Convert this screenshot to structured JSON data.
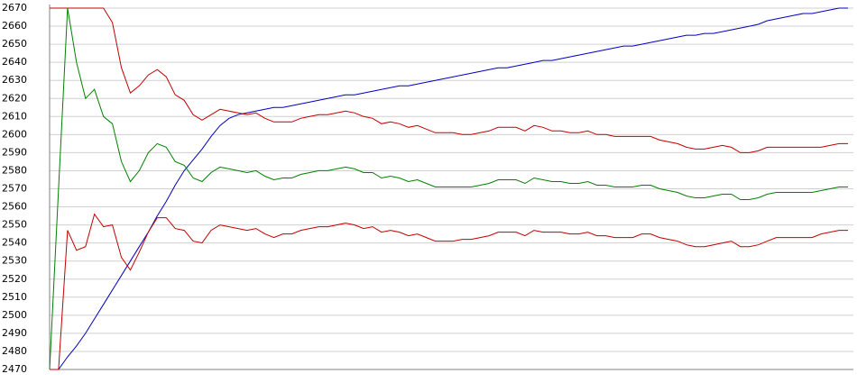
{
  "chart_data": {
    "type": "line",
    "categories": [
      null,
      null,
      null,
      null,
      null,
      null,
      null,
      null,
      null,
      null,
      null,
      null,
      null,
      null,
      null,
      null,
      null,
      null,
      null,
      null,
      null,
      null,
      null,
      null,
      null,
      null,
      null,
      null,
      null,
      null,
      null,
      null,
      null,
      null,
      null,
      null,
      null,
      null,
      null,
      null,
      null,
      null,
      null,
      null,
      null,
      null,
      null,
      null,
      null,
      null,
      null,
      null,
      null,
      null,
      null,
      null,
      null,
      null,
      null,
      null,
      null,
      null,
      null,
      null,
      null,
      null,
      null,
      null,
      null,
      null,
      null,
      null,
      null,
      null,
      null,
      null,
      null,
      null,
      null,
      null,
      null,
      null,
      null,
      null,
      null,
      null,
      null,
      null,
      null,
      null
    ],
    "series": [
      {
        "color": "#0000c0",
        "values": [
          2470,
          2470,
          2477,
          2483,
          2490,
          2498,
          2506,
          2514,
          2522,
          2530,
          2538,
          2546,
          2555,
          2563,
          2572,
          2580,
          2586,
          2592,
          2599,
          2605,
          2609,
          2611,
          2612,
          2613,
          2614,
          2615,
          2615,
          2616,
          2617,
          2618,
          2619,
          2620,
          2621,
          2622,
          2622,
          2623,
          2624,
          2625,
          2626,
          2627,
          2627,
          2628,
          2629,
          2630,
          2631,
          2632,
          2633,
          2634,
          2635,
          2636,
          2637,
          2637,
          2638,
          2639,
          2640,
          2641,
          2641,
          2642,
          2643,
          2644,
          2645,
          2646,
          2647,
          2648,
          2649,
          2649,
          2650,
          2651,
          2652,
          2653,
          2654,
          2655,
          2655,
          2656,
          2656,
          2657,
          2658,
          2659,
          2660,
          2661,
          2663,
          2664,
          2665,
          2666,
          2667,
          2667,
          2668,
          2669,
          2670,
          2670
        ]
      },
      {
        "color": "#008000",
        "values": [
          2470,
          2570,
          2670,
          2640,
          2620,
          2625,
          2610,
          2606,
          2585,
          2574,
          2580,
          2590,
          2595,
          2593,
          2585,
          2583,
          2576,
          2574,
          2579,
          2582,
          2581,
          2580,
          2579,
          2580,
          2577,
          2575,
          2576,
          2576,
          2578,
          2579,
          2580,
          2580,
          2581,
          2582,
          2581,
          2579,
          2579,
          2576,
          2577,
          2576,
          2574,
          2575,
          2573,
          2571,
          2571,
          2571,
          2571,
          2571,
          2572,
          2573,
          2575,
          2575,
          2575,
          2573,
          2576,
          2575,
          2574,
          2574,
          2573,
          2573,
          2574,
          2572,
          2572,
          2571,
          2571,
          2571,
          2572,
          2572,
          2570,
          2569,
          2568,
          2566,
          2565,
          2565,
          2566,
          2567,
          2567,
          2564,
          2564,
          2565,
          2567,
          2568,
          2568,
          2568,
          2568,
          2568,
          2569,
          2570,
          2571,
          2571
        ]
      },
      {
        "color": "#c00000",
        "values": [
          2670,
          2670,
          2670,
          2670,
          2670,
          2670,
          2670,
          2662,
          2637,
          2623,
          2627,
          2633,
          2636,
          2632,
          2622,
          2619,
          2611,
          2608,
          2611,
          2614,
          2613,
          2612,
          2611,
          2612,
          2609,
          2607,
          2607,
          2607,
          2609,
          2610,
          2611,
          2611,
          2612,
          2613,
          2612,
          2610,
          2609,
          2606,
          2607,
          2606,
          2604,
          2605,
          2603,
          2601,
          2601,
          2601,
          2600,
          2600,
          2601,
          2602,
          2604,
          2604,
          2604,
          2602,
          2605,
          2604,
          2602,
          2602,
          2601,
          2601,
          2602,
          2600,
          2600,
          2599,
          2599,
          2599,
          2599,
          2599,
          2597,
          2596,
          2595,
          2593,
          2592,
          2592,
          2593,
          2594,
          2593,
          2590,
          2590,
          2591,
          2593,
          2593,
          2593,
          2593,
          2593,
          2593,
          2593,
          2594,
          2595,
          2595
        ]
      },
      {
        "color": "#c00000",
        "values": [
          2470,
          2470,
          2547,
          2536,
          2538,
          2556,
          2549,
          2550,
          2532,
          2525,
          2535,
          2546,
          2554,
          2554,
          2548,
          2547,
          2541,
          2540,
          2547,
          2550,
          2549,
          2548,
          2547,
          2548,
          2545,
          2543,
          2545,
          2545,
          2547,
          2548,
          2549,
          2549,
          2550,
          2551,
          2550,
          2548,
          2549,
          2546,
          2547,
          2546,
          2544,
          2545,
          2543,
          2541,
          2541,
          2541,
          2542,
          2542,
          2543,
          2544,
          2546,
          2546,
          2546,
          2544,
          2547,
          2546,
          2546,
          2546,
          2545,
          2545,
          2546,
          2544,
          2544,
          2543,
          2543,
          2543,
          2545,
          2545,
          2543,
          2542,
          2541,
          2539,
          2538,
          2538,
          2539,
          2540,
          2541,
          2538,
          2538,
          2539,
          2541,
          2543,
          2543,
          2543,
          2543,
          2543,
          2545,
          2546,
          2547,
          2547
        ]
      }
    ],
    "ylim": [
      2470,
      2670
    ],
    "yticks": [
      2470,
      2480,
      2490,
      2500,
      2510,
      2520,
      2530,
      2540,
      2550,
      2560,
      2570,
      2580,
      2590,
      2600,
      2610,
      2620,
      2630,
      2640,
      2650,
      2660,
      2670
    ],
    "grid": true
  }
}
